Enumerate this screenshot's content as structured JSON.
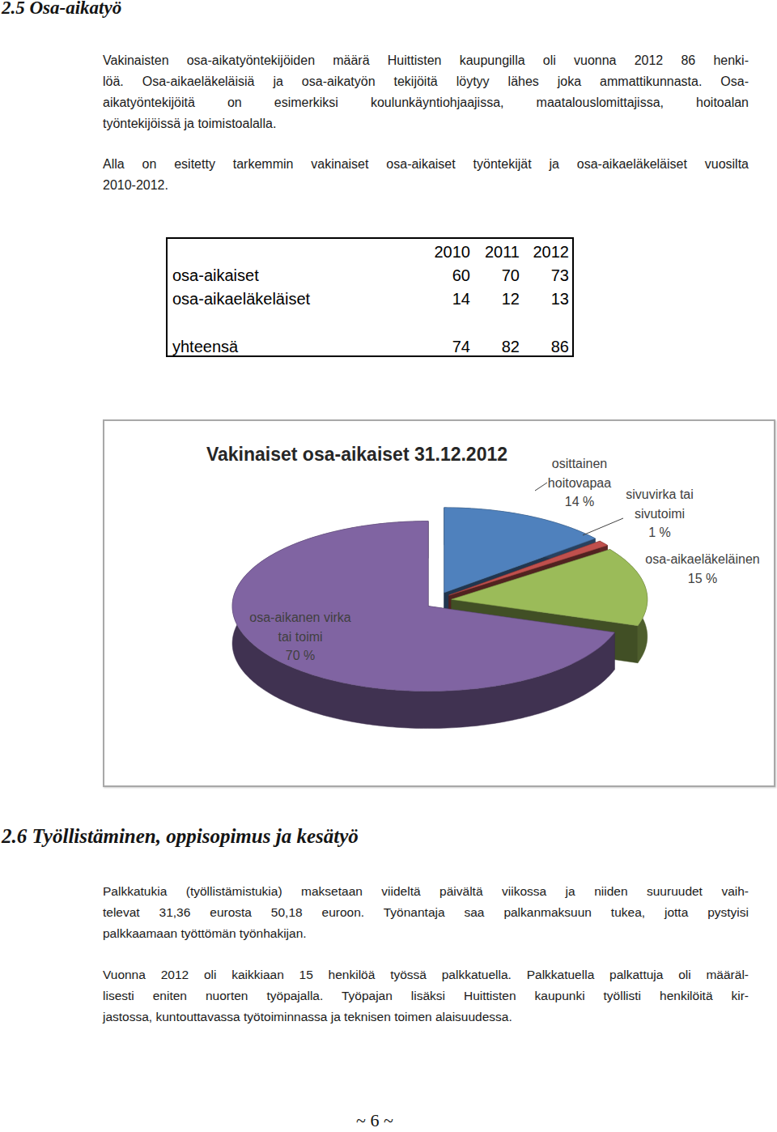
{
  "sections": [
    {
      "heading": "2.5 Osa-aikatyö",
      "paragraphs": [
        {
          "lines": [
            "Vakinaisten osa-aikatyöntekijöiden määrä Huittisten kaupungilla oli vuonna 2012 86 henki-",
            "löä. Osa-aikaeläkeläisiä ja osa-aikatyön tekijöitä löytyy lähes joka ammattikunnasta. Osa-",
            "aikatyöntekijöitä on esimerkiksi koulunkäyntiohjaajissa, maatalouslomittajissa, hoitoalan",
            "työntekijöissä ja toimistoalalla."
          ]
        },
        {
          "lines": [
            "Alla on esitetty tarkemmin vakinaiset osa-aikaiset työntekijät ja osa-aikaeläkeläiset vuosilta",
            "2010-2012."
          ]
        }
      ]
    },
    {
      "heading": "2.6 Työllistäminen, oppisopimus ja kesätyö",
      "paragraphs": [
        {
          "lines": [
            "Palkkatukia (työllistämistukia) maksetaan viideltä päivältä viikossa ja niiden suuruudet vaih-",
            "televat 31,36 eurosta 50,18 euroon. Työnantaja saa palkanmaksuun tukea, jotta pystyisi",
            "palkkaamaan työttömän työnhakijan."
          ]
        },
        {
          "lines": [
            "Vuonna 2012 oli kaikkiaan 15 henkilöä työssä palkkatuella. Palkkatuella palkattuja oli määräl-",
            "lisesti eniten nuorten työpajalla. Työpajan lisäksi Huittisten kaupunki työllisti henkilöitä kir-",
            "jastossa, kuntouttavassa työtoiminnassa ja teknisen toimen alaisuudessa."
          ]
        }
      ]
    }
  ],
  "table": {
    "header": [
      "2010",
      "2011",
      "2012"
    ],
    "rows": [
      {
        "label": "osa-aikaiset",
        "values": [
          60,
          70,
          73
        ]
      },
      {
        "label": "osa-aikaeläkeläiset",
        "values": [
          14,
          12,
          13
        ]
      }
    ],
    "total": {
      "label": "yhteensä",
      "values": [
        74,
        82,
        86
      ]
    }
  },
  "chart_data": {
    "type": "pie",
    "title": "Vakinaiset osa-aikaiset 31.12.2012",
    "categories": [
      "osittainen hoitovapaa",
      "sivuvirka tai sivutoimi",
      "osa-aikaeläkeläinen",
      "osa-aikanen virka tai toimi"
    ],
    "values": [
      14,
      1,
      15,
      70
    ],
    "value_labels": [
      "14 %",
      "1 %",
      "15 %",
      "70 %"
    ],
    "colors": [
      "#4f81bd",
      "#c0504d",
      "#9bbb59",
      "#8064a2"
    ],
    "data_labels": true
  },
  "page_number": "~ 6 ~"
}
